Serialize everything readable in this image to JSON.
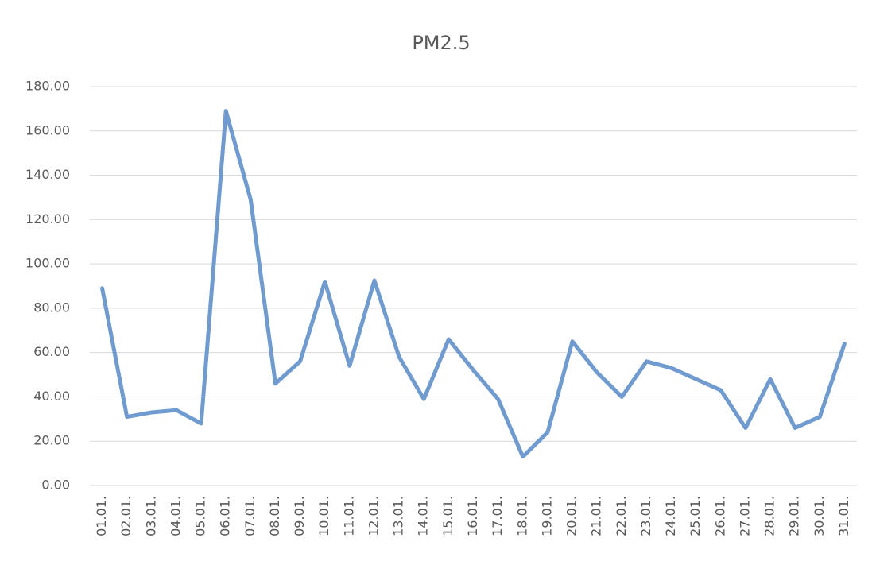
{
  "chart_data": {
    "type": "line",
    "title": "PM2.5",
    "categories": [
      "01.01.",
      "02.01.",
      "03.01.",
      "04.01.",
      "05.01.",
      "06.01.",
      "07.01.",
      "08.01.",
      "09.01.",
      "10.01.",
      "11.01.",
      "12.01.",
      "13.01.",
      "14.01.",
      "15.01.",
      "16.01.",
      "17.01.",
      "18.01.",
      "19.01.",
      "20.01.",
      "21.01.",
      "22.01.",
      "23.01.",
      "24.01.",
      "25.01.",
      "26.01.",
      "27.01.",
      "28.01.",
      "29.01.",
      "30.01.",
      "31.01."
    ],
    "series": [
      {
        "name": "PM2.5",
        "color": "#6f9bd0",
        "values": [
          89,
          31,
          33,
          34,
          28,
          169,
          129,
          46,
          56,
          92,
          54,
          92.5,
          58,
          39,
          66,
          52,
          39,
          13,
          24,
          65,
          51,
          40,
          56,
          53,
          48,
          43,
          26,
          48,
          26,
          31,
          64
        ]
      }
    ],
    "ylim": [
      0,
      180
    ],
    "yticks": [
      {
        "value": 0,
        "label": "0.00"
      },
      {
        "value": 20,
        "label": "20.00"
      },
      {
        "value": 40,
        "label": "40.00"
      },
      {
        "value": 60,
        "label": "60.00"
      },
      {
        "value": 80,
        "label": "80.00"
      },
      {
        "value": 100,
        "label": "100.00"
      },
      {
        "value": 120,
        "label": "120.00"
      },
      {
        "value": 140,
        "label": "140.00"
      },
      {
        "value": 160,
        "label": "160.00"
      },
      {
        "value": 180,
        "label": "180.00"
      }
    ],
    "grid": true,
    "legend": false
  }
}
